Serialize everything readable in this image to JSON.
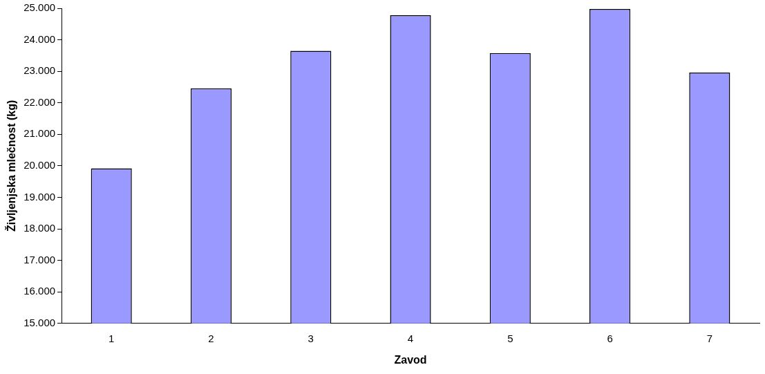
{
  "chart_data": {
    "type": "bar",
    "xlabel": "Zavod",
    "ylabel": "Življenjska mlečnost (kg)",
    "categories": [
      "1",
      "2",
      "3",
      "4",
      "5",
      "6",
      "7"
    ],
    "values": [
      19920,
      22460,
      23650,
      24780,
      23580,
      24980,
      22960
    ],
    "color": "#9999ff",
    "ylim": [
      15000,
      25000
    ],
    "yticks": [
      {
        "value": 15000,
        "label": "15.000"
      },
      {
        "value": 16000,
        "label": "16.000"
      },
      {
        "value": 17000,
        "label": "17.000"
      },
      {
        "value": 18000,
        "label": "18.000"
      },
      {
        "value": 19000,
        "label": "19.000"
      },
      {
        "value": 20000,
        "label": "20.000"
      },
      {
        "value": 21000,
        "label": "21.000"
      },
      {
        "value": 22000,
        "label": "22.000"
      },
      {
        "value": 23000,
        "label": "23.000"
      },
      {
        "value": 24000,
        "label": "24.000"
      },
      {
        "value": 25000,
        "label": "25.000"
      }
    ],
    "grid": false,
    "legend": false
  }
}
